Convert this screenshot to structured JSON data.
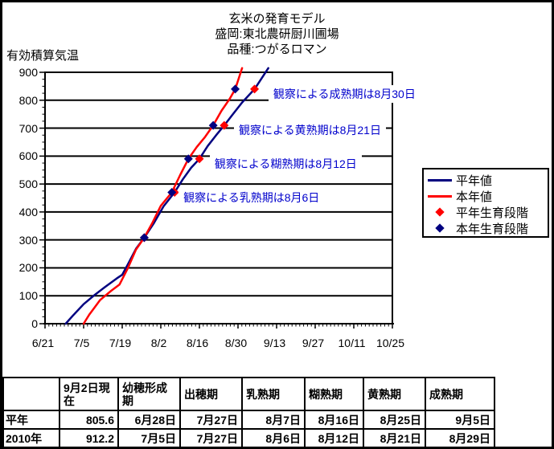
{
  "title": {
    "line1": "玄米の発育モデル",
    "line2": "盛岡:東北農研厨川圃場",
    "line3": "品種:つがるロマン"
  },
  "y_axis_caption": "有効積算気温",
  "colors": {
    "normal_year": "#000080",
    "this_year": "#ff0000",
    "annotation_text": "#0000cc",
    "grid": "#000000",
    "background": "#ffffff"
  },
  "chart_data": {
    "type": "line",
    "title": "玄米の発育モデル",
    "xlabel": "",
    "ylabel": "有効積算気温",
    "ylim": [
      0,
      900
    ],
    "y_tick_step": 100,
    "x_tick_labels": [
      "6/21",
      "7/5",
      "7/19",
      "8/2",
      "8/16",
      "8/30",
      "9/13",
      "9/27",
      "10/11",
      "10/25"
    ],
    "x_tick_days": [
      0,
      14,
      28,
      42,
      56,
      70,
      84,
      98,
      112,
      126
    ],
    "x_days_per_interval": 14,
    "grid": "horizontal",
    "legend_position": "right",
    "series": [
      {
        "name": "平年値",
        "color": "#000080",
        "points": [
          [
            7.5,
            0
          ],
          [
            10,
            28
          ],
          [
            14,
            70
          ],
          [
            18,
            103
          ],
          [
            22,
            133
          ],
          [
            26,
            162
          ],
          [
            28,
            175
          ],
          [
            30,
            212
          ],
          [
            33,
            268
          ],
          [
            36,
            308
          ],
          [
            39.5,
            360
          ],
          [
            43,
            420
          ],
          [
            47,
            470
          ],
          [
            50,
            517
          ],
          [
            53,
            558
          ],
          [
            56,
            590
          ],
          [
            59,
            636
          ],
          [
            62,
            674
          ],
          [
            65,
            710
          ],
          [
            68,
            748
          ],
          [
            71.5,
            792
          ],
          [
            76,
            840
          ],
          [
            81,
            915
          ]
        ]
      },
      {
        "name": "本年値",
        "color": "#ff0000",
        "points": [
          [
            14,
            0
          ],
          [
            16,
            32
          ],
          [
            20,
            85
          ],
          [
            24,
            118
          ],
          [
            27,
            140
          ],
          [
            30,
            198
          ],
          [
            33,
            265
          ],
          [
            36,
            308
          ],
          [
            39,
            362
          ],
          [
            42,
            422
          ],
          [
            46,
            470
          ],
          [
            49,
            532
          ],
          [
            52,
            590
          ],
          [
            55,
            632
          ],
          [
            58,
            668
          ],
          [
            61,
            710
          ],
          [
            64,
            762
          ],
          [
            67,
            805
          ],
          [
            69,
            840
          ],
          [
            71.5,
            915
          ]
        ]
      }
    ],
    "stage_markers": [
      {
        "name": "平年生育段階",
        "color": "#ff0000",
        "shape": "diamond",
        "points": [
          [
            36,
            308
          ],
          [
            47,
            470
          ],
          [
            56,
            590
          ],
          [
            65,
            710
          ],
          [
            76,
            840
          ]
        ]
      },
      {
        "name": "本年生育段階",
        "color": "#000080",
        "shape": "diamond",
        "points": [
          [
            36,
            308
          ],
          [
            46,
            470
          ],
          [
            52,
            590
          ],
          [
            61,
            710
          ],
          [
            69,
            840
          ]
        ]
      }
    ],
    "annotations": [
      {
        "text": "観察による乳熟期は8月6日",
        "day": 50.2,
        "value": 470
      },
      {
        "text": "観察による糊熟期は8月12日",
        "day": 61.5,
        "value": 590
      },
      {
        "text": "観察による黄熟期は8月21日",
        "day": 70.3,
        "value": 710
      },
      {
        "text": "観察による成熟期は8月30日",
        "day": 82.8,
        "value": 840
      }
    ]
  },
  "legend": {
    "items": [
      {
        "label": "平年値",
        "sample": "line",
        "color": "#000080"
      },
      {
        "label": "本年値",
        "sample": "line",
        "color": "#ff0000"
      },
      {
        "label": "平年生育段階",
        "sample": "diamond",
        "color": "#ff0000"
      },
      {
        "label": "本年生育段階",
        "sample": "diamond",
        "color": "#000080"
      }
    ]
  },
  "table": {
    "headers": [
      "",
      "9月2日現在",
      "幼穂形成期",
      "出穂期",
      "乳熟期",
      "糊熟期",
      "黄熟期",
      "成熟期"
    ],
    "rows": [
      {
        "label": "平年",
        "values": [
          "805.6",
          "6月28日",
          "7月27日",
          "8月7日",
          "8月16日",
          "8月25日",
          "9月5日"
        ]
      },
      {
        "label": "2010年",
        "values": [
          "912.2",
          "7月5日",
          "7月27日",
          "8月6日",
          "8月12日",
          "8月21日",
          "8月29日"
        ]
      }
    ]
  }
}
